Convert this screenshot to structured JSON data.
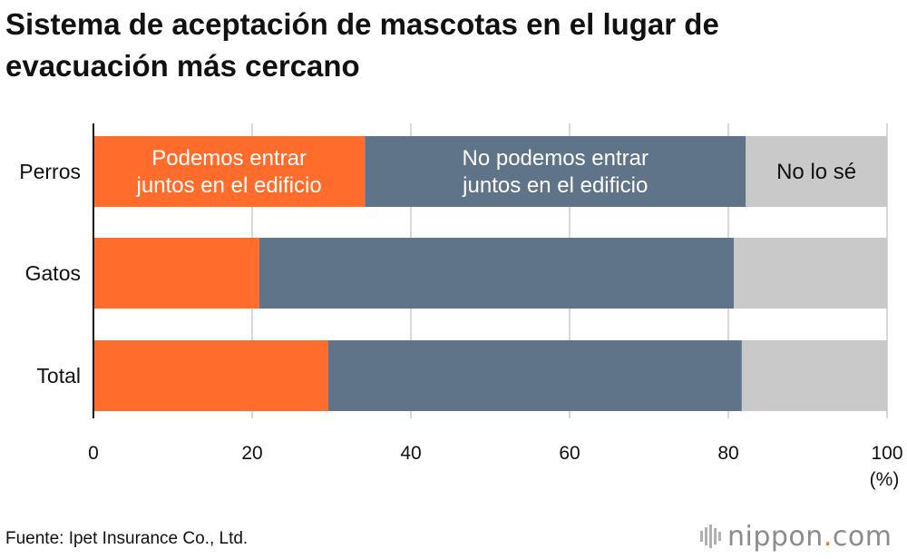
{
  "title": "Sistema de aceptación de mascotas en el lugar de evacuación más cercano",
  "source": "Fuente: Ipet Insurance Co., Ltd.",
  "logo": {
    "name": "nippon",
    "dot": ".",
    "tld": "com"
  },
  "colors": {
    "can_enter": "#ff6c2b",
    "cannot_enter": "#5f7389",
    "dont_know": "#c9c9c9",
    "grid": "#bdbdbd"
  },
  "chart_data": {
    "type": "bar",
    "orientation": "horizontal",
    "stacked": true,
    "categories": [
      "Perros",
      "Gatos",
      "Total"
    ],
    "series": [
      {
        "name": "Podemos entrar juntos en el edificio",
        "values": [
          34.2,
          20.9,
          29.6
        ]
      },
      {
        "name": "No podemos entrar juntos en el edificio",
        "values": [
          48.0,
          59.8,
          52.1
        ]
      },
      {
        "name": "No lo sé",
        "values": [
          17.8,
          19.3,
          18.3
        ]
      }
    ],
    "series_label_lines": [
      [
        "Podemos entrar",
        "juntos en el edificio"
      ],
      [
        "No podemos entrar",
        "juntos en el edificio"
      ],
      [
        "No lo sé"
      ]
    ],
    "xlim": [
      0,
      100
    ],
    "xticks": [
      0,
      20,
      40,
      60,
      80,
      100
    ],
    "xunit": "(%)",
    "grid": true
  }
}
